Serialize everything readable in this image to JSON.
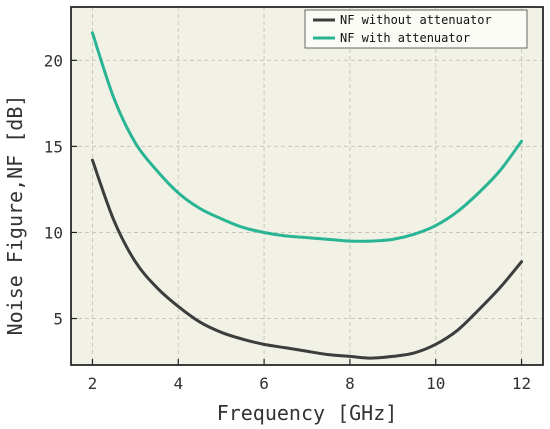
{
  "chart_data": {
    "type": "line",
    "xlabel": "Frequency [GHz]",
    "ylabel": "Noise Figure,NF [dB]",
    "xlim": [
      1.5,
      12.5
    ],
    "ylim": [
      2.3,
      23.1
    ],
    "xticks": [
      2,
      4,
      6,
      8,
      10,
      12
    ],
    "yticks": [
      5,
      10,
      15,
      20
    ],
    "grid": true,
    "grid_style": "dashed",
    "legend_position": "top-right",
    "background_color": "#f2f1e6",
    "series": [
      {
        "name": "NF without attenuator",
        "color": "#3d3d3d",
        "x": [
          2,
          2.5,
          3,
          3.5,
          4,
          4.5,
          5,
          5.5,
          6,
          6.5,
          7,
          7.5,
          8,
          8.5,
          9,
          9.5,
          10,
          10.5,
          11,
          11.5,
          12
        ],
        "y": [
          14.2,
          10.7,
          8.3,
          6.8,
          5.7,
          4.8,
          4.2,
          3.8,
          3.5,
          3.3,
          3.1,
          2.9,
          2.8,
          2.7,
          2.8,
          3.0,
          3.5,
          4.3,
          5.5,
          6.8,
          8.3
        ]
      },
      {
        "name": "NF with attenuator",
        "color": "#29b594",
        "x": [
          2,
          2.5,
          3,
          3.5,
          4,
          4.5,
          5,
          5.5,
          6,
          6.5,
          7,
          7.5,
          8,
          8.5,
          9,
          9.5,
          10,
          10.5,
          11,
          11.5,
          12
        ],
        "y": [
          21.6,
          17.8,
          15.2,
          13.6,
          12.3,
          11.4,
          10.8,
          10.3,
          10.0,
          9.8,
          9.7,
          9.6,
          9.5,
          9.5,
          9.6,
          9.9,
          10.4,
          11.2,
          12.3,
          13.6,
          15.3
        ]
      }
    ]
  }
}
